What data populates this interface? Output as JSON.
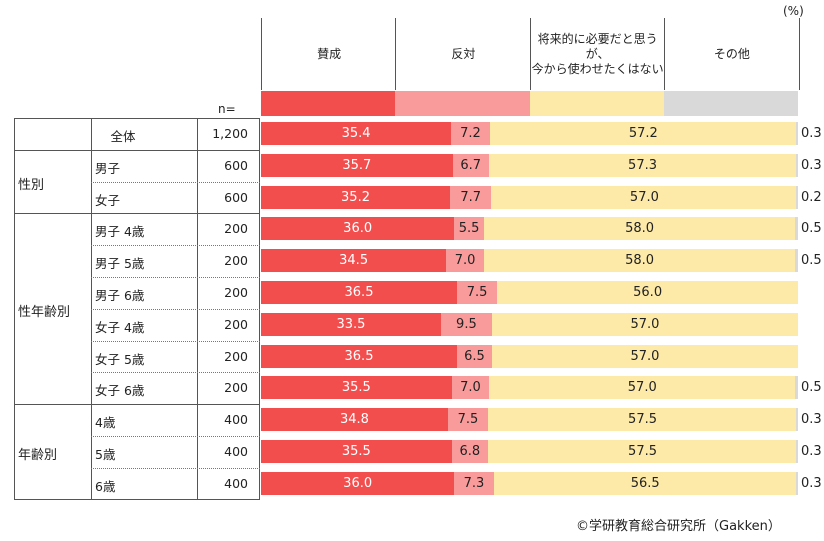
{
  "unit_label": "(%)",
  "n_label": "n=",
  "credit": "©学研教育総合研究所（Gakken）",
  "colors": {
    "agree": "#f24e4e",
    "disagree": "#f99b9b",
    "conditional": "#fde9a8",
    "other": "#d9d9d9",
    "grid": "#555555"
  },
  "chart_data": {
    "type": "bar",
    "stacked": true,
    "orientation": "horizontal",
    "percent": true,
    "xlim": [
      0,
      100
    ],
    "series": [
      {
        "name": "賛成",
        "color": "#f24e4e"
      },
      {
        "name": "反対",
        "color": "#f99b9b"
      },
      {
        "name": "将来的に必要だと思うが、\n今から使わせたくはない",
        "color": "#fde9a8"
      },
      {
        "name": "その他",
        "color": "#d9d9d9"
      }
    ],
    "groups": [
      {
        "label": "",
        "rows": [
          {
            "label": "全体",
            "n": "1,200",
            "values": [
              "35.4",
              "7.2",
              "57.2"
            ],
            "other": "0.3"
          }
        ]
      },
      {
        "label": "性別",
        "rows": [
          {
            "label": "男子",
            "n": "600",
            "values": [
              "35.7",
              "6.7",
              "57.3"
            ],
            "other": "0.3"
          },
          {
            "label": "女子",
            "n": "600",
            "values": [
              "35.2",
              "7.7",
              "57.0"
            ],
            "other": "0.2"
          }
        ]
      },
      {
        "label": "性年齢別",
        "rows": [
          {
            "label": "男子 4歳",
            "n": "200",
            "values": [
              "36.0",
              "5.5",
              "58.0"
            ],
            "other": "0.5"
          },
          {
            "label": "男子 5歳",
            "n": "200",
            "values": [
              "34.5",
              "7.0",
              "58.0"
            ],
            "other": "0.5"
          },
          {
            "label": "男子 6歳",
            "n": "200",
            "values": [
              "36.5",
              "7.5",
              "56.0"
            ],
            "other": ""
          },
          {
            "label": "女子 4歳",
            "n": "200",
            "values": [
              "33.5",
              "9.5",
              "57.0"
            ],
            "other": ""
          },
          {
            "label": "女子 5歳",
            "n": "200",
            "values": [
              "36.5",
              "6.5",
              "57.0"
            ],
            "other": ""
          },
          {
            "label": "女子 6歳",
            "n": "200",
            "values": [
              "35.5",
              "7.0",
              "57.0"
            ],
            "other": "0.5"
          }
        ]
      },
      {
        "label": "年齢別",
        "rows": [
          {
            "label": "4歳",
            "n": "400",
            "values": [
              "34.8",
              "7.5",
              "57.5"
            ],
            "other": "0.3"
          },
          {
            "label": "5歳",
            "n": "400",
            "values": [
              "35.5",
              "6.8",
              "57.5"
            ],
            "other": "0.3"
          },
          {
            "label": "6歳",
            "n": "400",
            "values": [
              "36.0",
              "7.3",
              "56.5"
            ],
            "other": "0.3"
          }
        ]
      }
    ]
  }
}
